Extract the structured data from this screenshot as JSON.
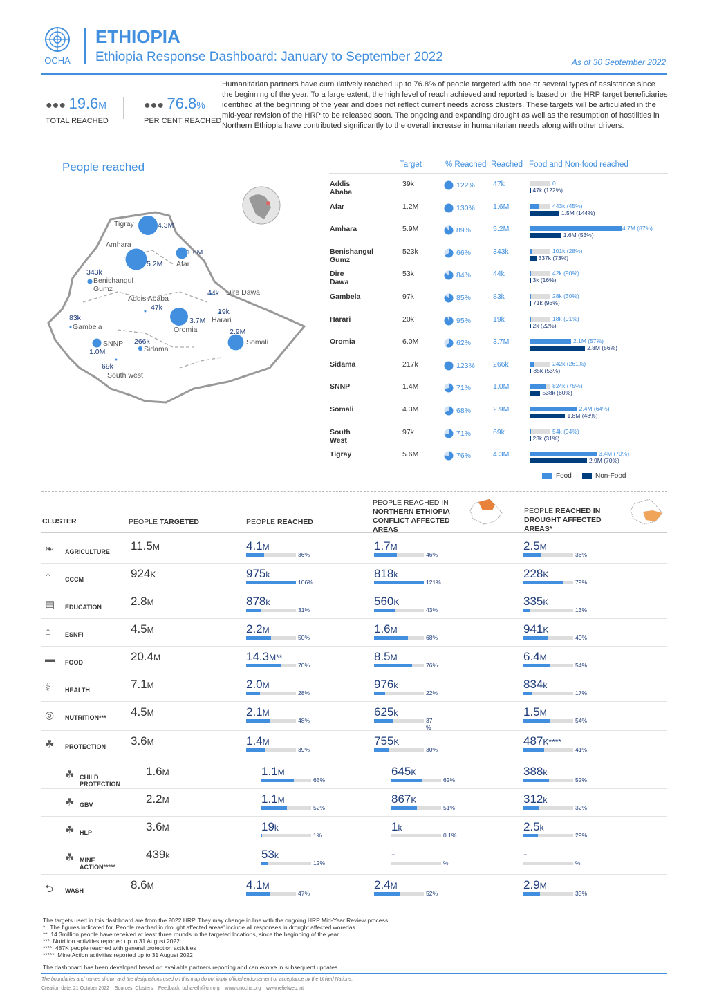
{
  "header": {
    "logo_text": "OCHA",
    "country": "ETHIOPIA",
    "title": "Ethiopia Response Dashboard: January to September 2022",
    "as_of": "As of 30 September 2022"
  },
  "kpis": [
    {
      "value": "19.6",
      "unit": "M",
      "label": "TOTAL REACHED"
    },
    {
      "value": "76.8",
      "unit": "%",
      "label": "PER CENT REACHED"
    }
  ],
  "intro": "Humanitarian partners have cumulatively reached up to 76.8% of people targeted with one or several types of assistance since the beginning of the year. To a large extent, the high level of reach achieved and reported is based on the HRP target beneficiaries identified at the beginning of the year and does not reflect current needs across clusters. These targets will be articulated in the mid-year revision of the HRP to be released soon. The ongoing and expanding drought as well as the resumption of hostilities in Northern Ethiopia have contributed significantly to the overall increase in humanitarian needs along with other drivers.",
  "people_reached_title": "People reached",
  "map_labels": [
    {
      "name": "Tigray",
      "value": "4.3M"
    },
    {
      "name": "Amhara",
      "value": "5.2M"
    },
    {
      "name": "Afar",
      "value": "1.6M"
    },
    {
      "name": "Benishangul Gumz",
      "value": "343k"
    },
    {
      "name": "Addis Ababa",
      "value": "47k"
    },
    {
      "name": "Dire Dawa",
      "value": "44k"
    },
    {
      "name": "Harari",
      "value": "19k"
    },
    {
      "name": "Oromia",
      "value": "3.7M"
    },
    {
      "name": "Gambela",
      "value": "83k"
    },
    {
      "name": "SNNP",
      "value": "1.0M"
    },
    {
      "name": "Sidama",
      "value": "266k"
    },
    {
      "name": "South west",
      "value": "69k"
    },
    {
      "name": "Somali",
      "value": "2.9M"
    }
  ],
  "region_table": {
    "headers": {
      "target": "Target",
      "pct": "% Reached",
      "reached": "Reached",
      "food": "Food and Non-food reached"
    },
    "legend": {
      "food": "Food",
      "nonfood": "Non-Food"
    },
    "rows": [
      {
        "region": "Addis Ababa",
        "target": "39k",
        "pct": "122%",
        "pct_value": 100,
        "reached": "47k",
        "food_label": "0",
        "food_value": 0,
        "nonfood_label": "47k (122%)",
        "nonfood_value": 0.047
      },
      {
        "region": "Afar",
        "target": "1.2M",
        "pct": "130%",
        "pct_value": 100,
        "reached": "1.6M",
        "food_label": "443k (45%)",
        "food_value": 0.443,
        "nonfood_label": "1.5M (144%)",
        "nonfood_value": 1.5
      },
      {
        "region": "Amhara",
        "target": "5.9M",
        "pct": "89%",
        "pct_value": 89,
        "reached": "5.2M",
        "food_label": "4.7M (87%)",
        "food_value": 4.7,
        "nonfood_label": "1.6M (53%)",
        "nonfood_value": 1.6
      },
      {
        "region": "Benishangul Gumz",
        "target": "523k",
        "pct": "66%",
        "pct_value": 66,
        "reached": "343k",
        "food_label": "101k (28%)",
        "food_value": 0.101,
        "nonfood_label": "337k (73%)",
        "nonfood_value": 0.337
      },
      {
        "region": "Dire Dawa",
        "target": "53k",
        "pct": "84%",
        "pct_value": 84,
        "reached": "44k",
        "food_label": "42k (90%)",
        "food_value": 0.042,
        "nonfood_label": "3k (16%)",
        "nonfood_value": 0.003
      },
      {
        "region": "Gambela",
        "target": "97k",
        "pct": "85%",
        "pct_value": 85,
        "reached": "83k",
        "food_label": "28k (30%)",
        "food_value": 0.028,
        "nonfood_label": "71k (93%)",
        "nonfood_value": 0.071
      },
      {
        "region": "Harari",
        "target": "20k",
        "pct": "95%",
        "pct_value": 95,
        "reached": "19k",
        "food_label": "18k (91%)",
        "food_value": 0.018,
        "nonfood_label": "2k (22%)",
        "nonfood_value": 0.002
      },
      {
        "region": "Oromia",
        "target": "6.0M",
        "pct": "62%",
        "pct_value": 62,
        "reached": "3.7M",
        "food_label": "2.1M (57%)",
        "food_value": 2.1,
        "nonfood_label": "2.8M (56%)",
        "nonfood_value": 2.8
      },
      {
        "region": "Sidama",
        "target": "217k",
        "pct": "123%",
        "pct_value": 100,
        "reached": "266k",
        "food_label": "242k (261%)",
        "food_value": 0.242,
        "nonfood_label": "85k (53%)",
        "nonfood_value": 0.085
      },
      {
        "region": "SNNP",
        "target": "1.4M",
        "pct": "71%",
        "pct_value": 71,
        "reached": "1.0M",
        "food_label": "824k (75%)",
        "food_value": 0.824,
        "nonfood_label": "538k (60%)",
        "nonfood_value": 0.538
      },
      {
        "region": "Somali",
        "target": "4.3M",
        "pct": "68%",
        "pct_value": 68,
        "reached": "2.9M",
        "food_label": "2.4M (64%)",
        "food_value": 2.4,
        "nonfood_label": "1.8M (48%)",
        "nonfood_value": 1.8
      },
      {
        "region": "South West",
        "target": "97k",
        "pct": "71%",
        "pct_value": 71,
        "reached": "69k",
        "food_label": "54k (94%)",
        "food_value": 0.054,
        "nonfood_label": "23k (31%)",
        "nonfood_value": 0.023
      },
      {
        "region": "Tigray",
        "target": "5.6M",
        "pct": "76%",
        "pct_value": 76,
        "reached": "4.3M",
        "food_label": "3.4M (70%)",
        "food_value": 3.4,
        "nonfood_label": "2.9M (70%)",
        "nonfood_value": 2.9
      }
    ]
  },
  "cluster_table": {
    "headers": {
      "cluster": "CLUSTER",
      "targeted_a": "PEOPLE ",
      "targeted_b": "TARGETED",
      "reached_a": "PEOPLE ",
      "reached_b": "REACHED",
      "north_a": "PEOPLE REACHED IN ",
      "north_b": "NORTHERN ETHIOPIA CONFLICT AFFECTED AREAS",
      "drought_a": "PEOPLE ",
      "drought_b": "REACHED IN DROUGHT AFFECTED AREAS*"
    },
    "rows": [
      {
        "name": "AGRICULTURE",
        "icon": "wheat-icon",
        "targeted": "11.5",
        "tu": "M",
        "reached": "4.1",
        "ru": "M",
        "rp": "36%",
        "rv": 36,
        "north": "1.7",
        "nu": "M",
        "np": "46%",
        "nv": 46,
        "drought": "2.5",
        "du": "M",
        "dp": "36%",
        "dv": 36,
        "sub": false
      },
      {
        "name": "CCCM",
        "icon": "camp-icon",
        "targeted": "924",
        "tu": "K",
        "reached": "975",
        "ru": "k",
        "rp": "106%",
        "rv": 100,
        "north": "818",
        "nu": "k",
        "np": "121%",
        "nv": 100,
        "drought": "228",
        "du": "K",
        "dp": "79%",
        "dv": 79,
        "sub": false
      },
      {
        "name": "EDUCATION",
        "icon": "book-icon",
        "targeted": "2.8",
        "tu": "M",
        "reached": "878",
        "ru": "k",
        "rp": "31%",
        "rv": 31,
        "north": "560",
        "nu": "K",
        "np": "43%",
        "nv": 43,
        "drought": "335",
        "du": "K",
        "dp": "13%",
        "dv": 13,
        "sub": false
      },
      {
        "name": "ESNFI",
        "icon": "shelter-icon",
        "targeted": "4.5",
        "tu": "M",
        "reached": "2.2",
        "ru": "M",
        "rp": "50%",
        "rv": 50,
        "north": "1.6",
        "nu": "M",
        "np": "68%",
        "nv": 68,
        "drought": "941",
        "du": "K",
        "dp": "49%",
        "dv": 49,
        "sub": false
      },
      {
        "name": "FOOD",
        "icon": "food-icon",
        "targeted": "20.4",
        "tu": "M",
        "reached": "14.3",
        "ru": "M**",
        "rp": "70%",
        "rv": 70,
        "north": "8.5",
        "nu": "M",
        "np": "76%",
        "nv": 76,
        "drought": "6.4",
        "du": "M",
        "dp": "54%",
        "dv": 54,
        "sub": false
      },
      {
        "name": "HEALTH",
        "icon": "health-icon",
        "targeted": "7.1",
        "tu": "M",
        "reached": "2.0",
        "ru": "M",
        "rp": "28%",
        "rv": 28,
        "north": "976",
        "nu": "k",
        "np": "22%",
        "nv": 22,
        "drought": "834",
        "du": "k",
        "dp": "17%",
        "dv": 17,
        "sub": false
      },
      {
        "name": "NUTRITION***",
        "icon": "nutrition-icon",
        "targeted": "4.5",
        "tu": "M",
        "reached": "2.1",
        "ru": "M",
        "rp": "48%",
        "rv": 48,
        "north": "625",
        "nu": "k",
        "np": "37 %",
        "nv": 37,
        "drought": "1.5",
        "du": "M",
        "dp": "54%",
        "dv": 54,
        "sub": false
      },
      {
        "name": "PROTECTION",
        "icon": "protection-icon",
        "targeted": "3.6",
        "tu": "M",
        "reached": "1.4",
        "ru": "M",
        "rp": "39%",
        "rv": 39,
        "north": "755",
        "nu": "K",
        "np": "30%",
        "nv": 30,
        "drought": "487",
        "du": "K****",
        "dp": "41%",
        "dv": 41,
        "sub": false
      },
      {
        "name": "CHILD PROTECTION",
        "icon": "protection-icon",
        "targeted": "1.6",
        "tu": "M",
        "reached": "1.1",
        "ru": "M",
        "rp": "65%",
        "rv": 65,
        "north": "645",
        "nu": "K",
        "np": "62%",
        "nv": 62,
        "drought": "388",
        "du": "k",
        "dp": "52%",
        "dv": 52,
        "sub": true
      },
      {
        "name": "GBV",
        "icon": "protection-icon",
        "targeted": "2.2",
        "tu": "M",
        "reached": "1.1",
        "ru": "M",
        "rp": "52%",
        "rv": 52,
        "north": "867",
        "nu": "K",
        "np": "51%",
        "nv": 51,
        "drought": "312",
        "du": "k",
        "dp": "32%",
        "dv": 32,
        "sub": true
      },
      {
        "name": "HLP",
        "icon": "protection-icon",
        "targeted": "3.6",
        "tu": "M",
        "reached": "19",
        "ru": "k",
        "rp": "1%",
        "rv": 1,
        "north": "1",
        "nu": "k",
        "np": "0.1%",
        "nv": 0.1,
        "drought": "2.5",
        "du": "k",
        "dp": "29%",
        "dv": 29,
        "sub": true
      },
      {
        "name": "MINE ACTION*****",
        "icon": "protection-icon",
        "targeted": "439",
        "tu": "k",
        "reached": "53",
        "ru": "k",
        "rp": "12%",
        "rv": 12,
        "north": "-",
        "nu": "",
        "np": "%",
        "nv": 0,
        "drought": "-",
        "du": "",
        "dp": "%",
        "dv": 0,
        "sub": true
      },
      {
        "name": "WASH",
        "icon": "tap-icon",
        "targeted": "8.6",
        "tu": "M",
        "reached": "4.1",
        "ru": "M",
        "rp": "47%",
        "rv": 47,
        "north": "2.4",
        "nu": "M",
        "np": "52%",
        "nv": 52,
        "drought": "2.9",
        "du": "M",
        "dp": "33%",
        "dv": 33,
        "sub": false
      }
    ]
  },
  "notes": [
    "The targets used in this dashboard are from the 2022 HRP. They may change in line with the ongoing HRP Mid-Year Review process.",
    "*   The figures indicated for 'People reached in drought affected areas' include all responses in drought affected woredas",
    "**  14.3million people have received at least three rounds in the targeted locations, since the beginning of the year",
    "***  Nutrition activities reported up to 31 August 2022",
    "****  487K people reached with general protection activities",
    "*****  Mine Action activities reported up to 31 August 2022"
  ],
  "disclaimer_note": "The dashboard has been developed based on available partners reporting and can evolve in subsequent updates.",
  "footer_disclaimer": "The boundaries and names shown and the designations used on this map do not imply official endorsement or acceptance by the United Nations.",
  "footer_meta": "Creation date: 21 October 2022    Sources: Clusters    Feedback: ocha-eth@un.org    www.unocha.org    www.reliefweb.int",
  "colors": {
    "accent": "#418fde",
    "navy": "#003e7e",
    "grey": "#dddddd"
  }
}
